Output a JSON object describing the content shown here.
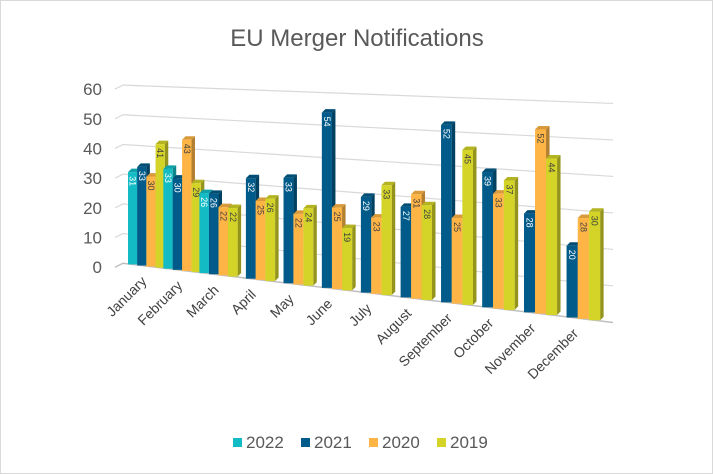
{
  "chart_data": {
    "type": "bar",
    "style": "3d-clustered-column",
    "title": "EU Merger Notifications",
    "xlabel": "",
    "ylabel": "",
    "ylim": [
      0,
      60
    ],
    "yticks": [
      0,
      10,
      20,
      30,
      40,
      50,
      60
    ],
    "grid": true,
    "legend": "bottom",
    "categories": [
      "January",
      "February",
      "March",
      "April",
      "May",
      "June",
      "July",
      "August",
      "September",
      "October",
      "November",
      "December"
    ],
    "series": [
      {
        "name": "2022",
        "color": "#13BCC4",
        "values": [
          31,
          33,
          26,
          null,
          null,
          null,
          null,
          null,
          null,
          null,
          null,
          null
        ]
      },
      {
        "name": "2021",
        "color": "#005B8A",
        "values": [
          33,
          30,
          26,
          32,
          33,
          54,
          29,
          27,
          52,
          39,
          28,
          20
        ]
      },
      {
        "name": "2020",
        "color": "#FFB546",
        "values": [
          30,
          43,
          22,
          25,
          22,
          25,
          23,
          31,
          25,
          33,
          52,
          28
        ]
      },
      {
        "name": "2019",
        "color": "#D4D428",
        "values": [
          41,
          29,
          22,
          26,
          24,
          19,
          33,
          28,
          45,
          37,
          44,
          30
        ]
      }
    ]
  }
}
